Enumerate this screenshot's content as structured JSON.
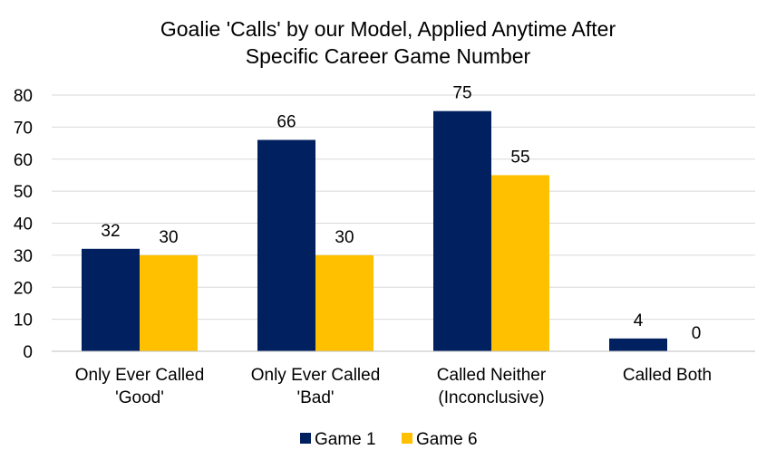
{
  "chart_data": {
    "type": "bar",
    "title_lines": [
      "Goalie 'Calls' by our Model, Applied Anytime After",
      "Specific Career Game Number"
    ],
    "categories": [
      [
        "Only Ever Called",
        "'Good'"
      ],
      [
        "Only Ever Called",
        "'Bad'"
      ],
      [
        "Called Neither",
        "(Inconclusive)"
      ],
      [
        "Called Both"
      ]
    ],
    "series": [
      {
        "name": "Game 1",
        "color": "#002060",
        "values": [
          32,
          66,
          75,
          4
        ]
      },
      {
        "name": "Game 6",
        "color": "#FFC000",
        "values": [
          30,
          30,
          55,
          0
        ]
      }
    ],
    "ylim": [
      0,
      80
    ],
    "yticks": [
      0,
      10,
      20,
      30,
      40,
      50,
      60,
      70,
      80
    ],
    "grid": true,
    "legend_position": "bottom",
    "xlabel": "",
    "ylabel": ""
  }
}
